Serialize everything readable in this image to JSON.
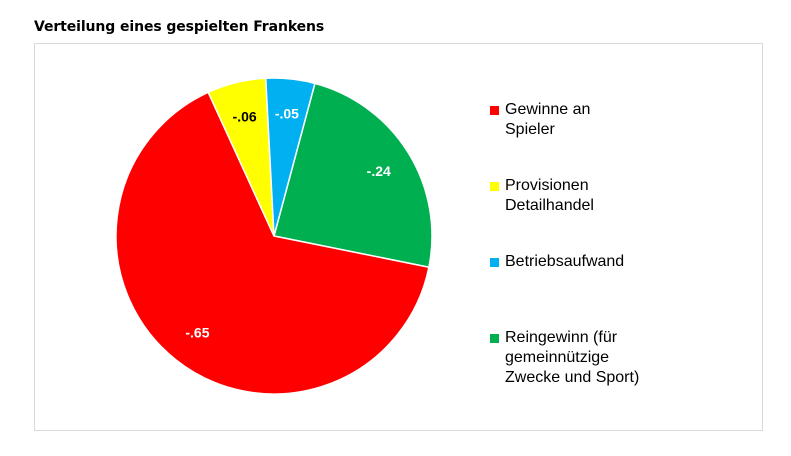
{
  "page": {
    "title": "Verteilung eines gespielten Frankens"
  },
  "chart_data": {
    "type": "pie",
    "title": "Verteilung eines gespielten Frankens",
    "legend_position": "right",
    "start_angle_deg": 15,
    "direction": "clockwise",
    "slices": [
      {
        "name": "Reingewinn (für\ngemeinnützige\nZwecke und Sport)",
        "value": 0.24,
        "label": "-.24",
        "color": "#00b050",
        "label_color": "#ffffff"
      },
      {
        "name": "Gewinne an\nSpieler",
        "value": 0.65,
        "label": "-.65",
        "color": "#ff0000",
        "label_color": "#ffffff"
      },
      {
        "name": "Provisionen\nDetailhandel",
        "value": 0.06,
        "label": "-.06",
        "color": "#ffff00",
        "label_color": "#000000"
      },
      {
        "name": "Betriebsaufwand",
        "value": 0.05,
        "label": "-.05",
        "color": "#00b0f0",
        "label_color": "#ffffff"
      }
    ],
    "legend_order": [
      1,
      2,
      3,
      0
    ]
  }
}
